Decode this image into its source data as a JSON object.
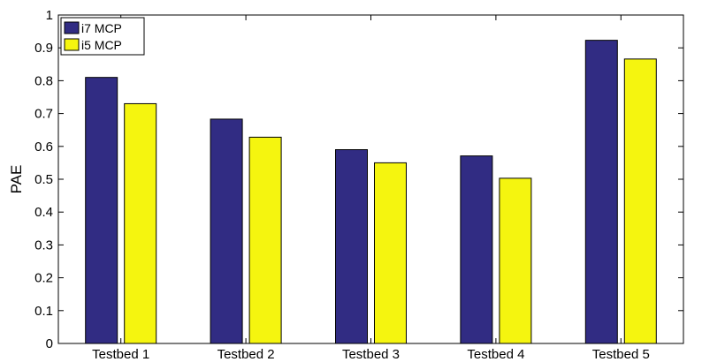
{
  "chart_data": {
    "type": "bar",
    "categories": [
      "Testbed 1",
      "Testbed 2",
      "Testbed 3",
      "Testbed 4",
      "Testbed 5"
    ],
    "series": [
      {
        "name": "i7 MCP",
        "color": "#312c83",
        "values": [
          0.81,
          0.683,
          0.59,
          0.571,
          0.923
        ]
      },
      {
        "name": "i5 MCP",
        "color": "#f5f50f",
        "values": [
          0.73,
          0.628,
          0.55,
          0.503,
          0.866
        ]
      }
    ],
    "title": "",
    "xlabel": "",
    "ylabel": "PAE",
    "ylim": [
      0,
      1
    ],
    "yticks": [
      "0",
      "0.1",
      "0.2",
      "0.3",
      "0.4",
      "0.5",
      "0.6",
      "0.7",
      "0.8",
      "0.9",
      "1"
    ],
    "grid": false,
    "legend_position": "top-left"
  }
}
